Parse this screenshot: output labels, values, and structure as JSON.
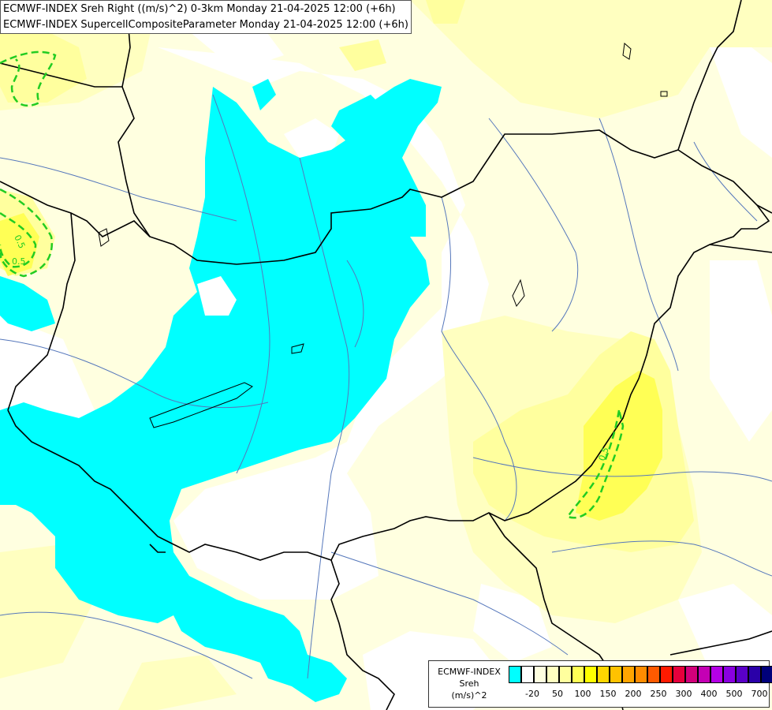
{
  "title": {
    "line1": "ECMWF-INDEX Sreh Right ((m/s)^2) 0-3km Monday 21-04-2025 12:00 (+6h)",
    "line2": "ECMWF-INDEX SupercellCompositeParameter Monday 21-04-2025 12:00 (+6h)"
  },
  "legend": {
    "line1": "ECMWF-INDEX",
    "line2": "Sreh",
    "line3": "(m/s)^2",
    "colors": [
      "#00ffff",
      "#ffffff",
      "#ffffe0",
      "#ffffc0",
      "#ffff9e",
      "#ffff55",
      "#ffff00",
      "#ffd700",
      "#ffc200",
      "#ffa500",
      "#ff8c00",
      "#ff5a00",
      "#ff1a00",
      "#e6003c",
      "#d2007a",
      "#c400b4",
      "#b400e6",
      "#8a00e0",
      "#5a00c8",
      "#2a00a8",
      "#00007a"
    ],
    "ticks": [
      "-20",
      "50",
      "100",
      "150",
      "200",
      "250",
      "300",
      "400",
      "500",
      "700"
    ]
  },
  "contours": {
    "scp_labels": [
      "0.5",
      "0.5",
      "0.5"
    ],
    "scp_color": "#22cc22"
  },
  "colors": {
    "background": "#ffffe0",
    "cyan": "#00ffff",
    "white": "#ffffff",
    "yellow_light": "#ffffc0",
    "yellow_mid": "#ffff9e",
    "yellow_strong": "#ffff55",
    "border": "#000000",
    "river": "#5577bb"
  }
}
